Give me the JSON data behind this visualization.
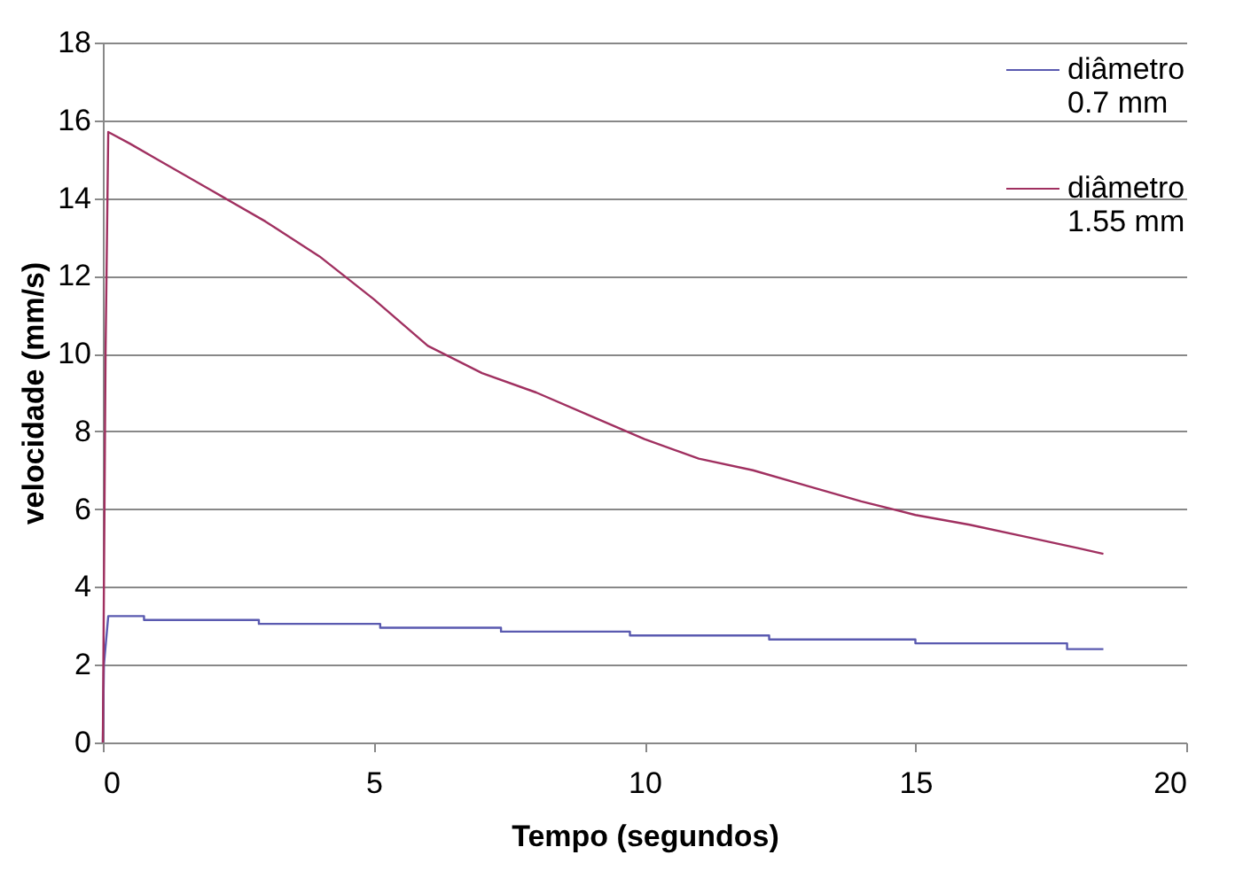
{
  "chart_data": {
    "type": "line",
    "xlabel": "Tempo (segundos)",
    "ylabel": "velocidade (mm/s)",
    "xlim": [
      0,
      20
    ],
    "xticks": [
      0,
      5,
      10,
      15,
      20
    ],
    "ylim": [
      0,
      18
    ],
    "yticks": [
      0,
      2,
      4,
      6,
      8,
      10,
      12,
      14,
      16,
      18
    ],
    "grid": "y",
    "legend": "top right",
    "marker": "none",
    "line_style": "solid",
    "series": [
      {
        "name": "diâmetro 0.7 mm",
        "color": "#5a5ab0",
        "x": [
          0,
          0.02,
          0.1,
          0.76,
          0.76,
          2.88,
          2.88,
          5.12,
          5.12,
          7.35,
          7.35,
          9.73,
          9.73,
          12.3,
          12.3,
          15.0,
          15.0,
          17.8,
          17.8,
          18.47
        ],
        "values": [
          0,
          2.0,
          3.25,
          3.25,
          3.15,
          3.15,
          3.05,
          3.05,
          2.95,
          2.95,
          2.85,
          2.85,
          2.75,
          2.75,
          2.65,
          2.65,
          2.55,
          2.55,
          2.4,
          2.4
        ]
      },
      {
        "name": "diâmetro 1.55 mm",
        "color": "#a03060",
        "x": [
          0,
          0.05,
          0.1,
          0.5,
          1,
          2,
          3,
          4,
          5,
          6,
          7,
          8,
          9,
          10,
          11,
          12,
          13,
          14,
          15,
          16,
          17,
          18,
          18.47
        ],
        "values": [
          0,
          10.0,
          15.7,
          15.4,
          15.0,
          14.2,
          13.4,
          12.5,
          11.4,
          10.2,
          9.5,
          9.0,
          8.4,
          7.8,
          7.3,
          7.0,
          6.6,
          6.2,
          5.85,
          5.6,
          5.3,
          5.0,
          4.85
        ]
      }
    ]
  }
}
